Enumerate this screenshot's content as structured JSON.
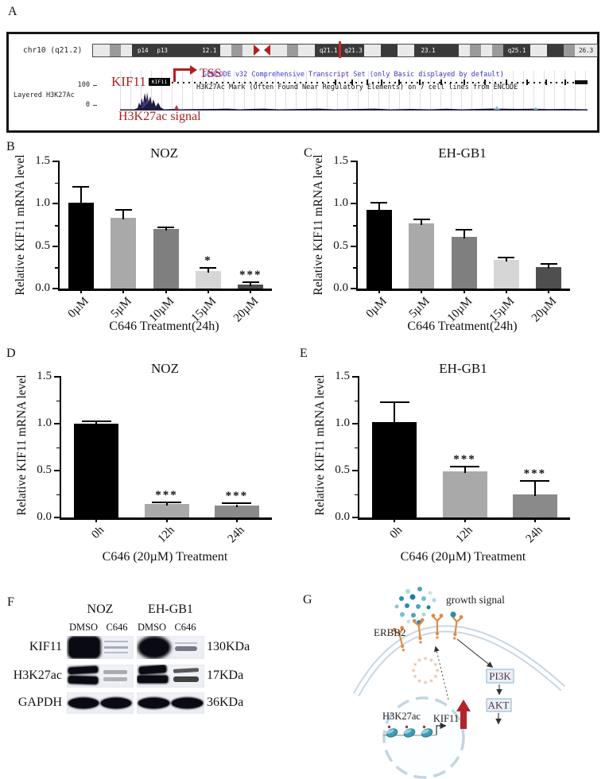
{
  "panel_labels": {
    "a": "A",
    "b": "B",
    "c": "C",
    "d": "D",
    "e": "E",
    "f": "F",
    "g": "G"
  },
  "genome_browser": {
    "chrom": "chr10 (q21.2)",
    "gene_label": "KIF11",
    "gene_box": "KIF11",
    "tss": "TSS",
    "gencode_title": "GENCODE v32 Comprehensive Transcript Set (only Basic displayed by default)",
    "h3k27ac_title": "H3K27Ac Mark (Often Found Near Regulatory Elements) on 7 cell lines from ENCODE",
    "track_label": "Layered H3K27Ac",
    "scale_max": "100",
    "scale_min": "0",
    "signal_caption": "H3K27ac signal",
    "ideogram_bands": [
      {
        "w": 3,
        "c": "l"
      },
      {
        "w": 2,
        "c": "m"
      },
      {
        "w": 2,
        "c": "l"
      },
      {
        "w": 4,
        "c": "d",
        "t": "p14"
      },
      {
        "w": 3,
        "c": "d",
        "t": "p13"
      },
      {
        "w": 5,
        "c": "d"
      },
      {
        "w": 4,
        "c": "d",
        "t": "12.1"
      },
      {
        "w": 2,
        "c": "l"
      },
      {
        "w": 2,
        "c": "m"
      },
      {
        "w": 2,
        "c": "l"
      },
      {
        "cen": true,
        "w": 3
      },
      {
        "w": 3,
        "c": "l"
      },
      {
        "w": 2,
        "c": "m"
      },
      {
        "w": 3,
        "c": "l"
      },
      {
        "w": 5,
        "c": "d",
        "t": "q21.1"
      },
      {
        "w": 4,
        "c": "d",
        "t": "q21.3"
      },
      {
        "w": 3,
        "c": "l"
      },
      {
        "w": 3,
        "c": "d"
      },
      {
        "w": 3,
        "c": "l"
      },
      {
        "w": 5,
        "c": "d",
        "t": "23.1"
      },
      {
        "w": 3,
        "c": "d"
      },
      {
        "w": 2,
        "c": "l"
      },
      {
        "w": 2,
        "c": "m"
      },
      {
        "w": 2,
        "c": "l"
      },
      {
        "w": 2,
        "c": "m"
      },
      {
        "w": 5,
        "c": "d",
        "t": "q25.1"
      },
      {
        "w": 3,
        "c": "l"
      },
      {
        "w": 3,
        "c": "d"
      },
      {
        "w": 2,
        "c": "m"
      },
      {
        "w": 4,
        "c": "l",
        "t": "26.3",
        "tc": "#222"
      }
    ]
  },
  "chart_data": [
    {
      "type": "bar",
      "panel": "B",
      "title": "NOZ",
      "ylabel": "Relative KIF11 mRNA level",
      "xlabel": "C646 Treatment(24h)",
      "categories": [
        "0µM",
        "5µM",
        "10µM",
        "15µM",
        "20µM"
      ],
      "values": [
        1.01,
        0.83,
        0.7,
        0.21,
        0.05
      ],
      "errors": [
        0.18,
        0.09,
        0.01,
        0.02,
        0.02
      ],
      "sig": [
        "",
        "",
        "",
        "*",
        "***"
      ],
      "bar_colors": [
        "#000000",
        "#a9a9a9",
        "#7f7f7f",
        "#d6d6d6",
        "#4f4f4f"
      ],
      "ylim": [
        0,
        1.5
      ],
      "yticks": [
        "0.0",
        "0.5",
        "1.0",
        "1.5"
      ],
      "grid": false
    },
    {
      "type": "bar",
      "panel": "C",
      "title": "EH-GB1",
      "ylabel": "Relative KIF11 mRNA level",
      "xlabel": "C646 Treatment(24h)",
      "categories": [
        "0µM",
        "5µM",
        "10µM",
        "15µM",
        "20µM"
      ],
      "values": [
        0.93,
        0.77,
        0.61,
        0.34,
        0.25
      ],
      "errors": [
        0.07,
        0.04,
        0.07,
        0.02,
        0.03
      ],
      "sig": [
        "",
        "",
        "",
        "",
        ""
      ],
      "bar_colors": [
        "#000000",
        "#a9a9a9",
        "#7f7f7f",
        "#d6d6d6",
        "#4f4f4f"
      ],
      "ylim": [
        0,
        1.5
      ],
      "yticks": [
        "0.0",
        "0.5",
        "1.0",
        "1.5"
      ],
      "grid": false
    },
    {
      "type": "bar",
      "panel": "D",
      "title": "NOZ",
      "ylabel": "Relative KIF11 mRNA level",
      "xlabel": "C646 (20µM) Treatment",
      "categories": [
        "0h",
        "12h",
        "24h"
      ],
      "values": [
        1.0,
        0.14,
        0.13
      ],
      "errors": [
        0.02,
        0.01,
        0.01
      ],
      "sig": [
        "",
        "***",
        "***"
      ],
      "bar_colors": [
        "#000000",
        "#a9a9a9",
        "#8a8a8a"
      ],
      "ylim": [
        0,
        1.5
      ],
      "yticks": [
        "0.0",
        "0.5",
        "1.0",
        "1.5"
      ],
      "grid": false
    },
    {
      "type": "bar",
      "panel": "E",
      "title": "EH-GB1",
      "ylabel": "Relative KIF11 mRNA level",
      "xlabel": "C646 (20µM) Treatment",
      "categories": [
        "0h",
        "12h",
        "24h"
      ],
      "values": [
        1.02,
        0.49,
        0.25
      ],
      "errors": [
        0.2,
        0.04,
        0.13
      ],
      "sig": [
        "",
        "***",
        "***"
      ],
      "bar_colors": [
        "#000000",
        "#a9a9a9",
        "#8a8a8a"
      ],
      "ylim": [
        0,
        1.5
      ],
      "yticks": [
        "0.0",
        "0.5",
        "1.0",
        "1.5"
      ],
      "grid": false
    }
  ],
  "western": {
    "cell_lines": [
      "NOZ",
      "EH-GB1"
    ],
    "lane_headers": [
      "DMSO",
      "C646",
      "DMSO",
      "C646"
    ],
    "rows": [
      {
        "protein": "KIF11",
        "mw": "130KDa"
      },
      {
        "protein": "H3K27ac",
        "mw": "17KDa"
      },
      {
        "protein": "GAPDH",
        "mw": "36KDa"
      }
    ]
  },
  "pathway": {
    "growth_signal": "growth signal",
    "receptor": "ERBB2",
    "pi3k": "PI3K",
    "akt": "AKT",
    "h3k27ac": "H3K27ac",
    "kif11": "KIF11"
  },
  "colors": {
    "accent_red": "#ab1f1f",
    "browser_blue": "#3b3bc8",
    "membrane": "#c9d7e4",
    "receptor_orange": "#df8b45",
    "signal_dot_blue": "#2d8cb0",
    "box_fill": "#e9f1f8",
    "box_border": "#8fb0cc",
    "up_arrow_red": "#b5222a",
    "nucleosome_teal": "#3d9cb8"
  }
}
